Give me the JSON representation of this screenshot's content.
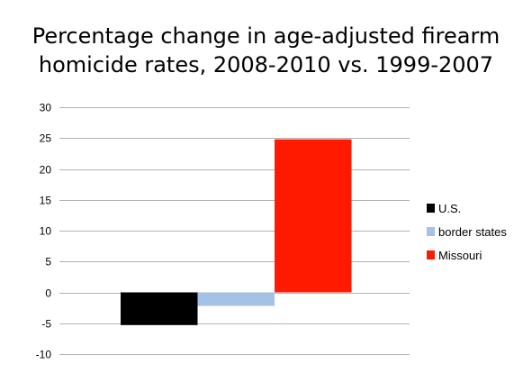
{
  "chart_data": {
    "type": "bar",
    "title_lines": [
      "Percentage change in age-adjusted firearm",
      "homicide rates, 2008-2010 vs. 1999-2007"
    ],
    "xlabel": "",
    "ylabel": "",
    "ylim": [
      -10,
      30
    ],
    "yticks": [
      30,
      25,
      20,
      15,
      10,
      5,
      0,
      -5,
      -10
    ],
    "grid": true,
    "legend_position": "right",
    "series": [
      {
        "name": "U.S.",
        "value": -5.3,
        "color": "#000000"
      },
      {
        "name": "border states",
        "value": -2.2,
        "color": "#a4c2e6"
      },
      {
        "name": "Missouri",
        "value": 24.8,
        "color": "#ff1a00"
      }
    ]
  }
}
